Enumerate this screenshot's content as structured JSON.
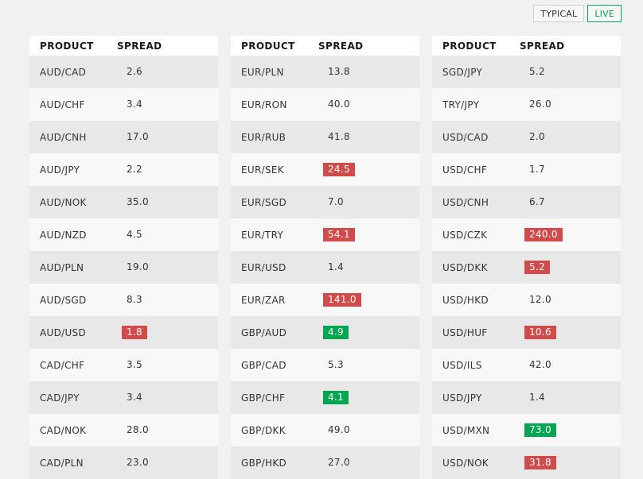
{
  "toggle": {
    "typical_label": "TYPICAL",
    "live_label": "LIVE",
    "active": "LIVE"
  },
  "columns_header": {
    "product": "PRODUCT",
    "spread": "SPREAD"
  },
  "colors": {
    "up": "#00a651",
    "down": "#d24b4b"
  },
  "tables": [
    {
      "rows": [
        {
          "product": "AUD/CAD",
          "spread": "2.6",
          "status": "none"
        },
        {
          "product": "AUD/CHF",
          "spread": "3.4",
          "status": "none"
        },
        {
          "product": "AUD/CNH",
          "spread": "17.0",
          "status": "none"
        },
        {
          "product": "AUD/JPY",
          "spread": "2.2",
          "status": "none"
        },
        {
          "product": "AUD/NOK",
          "spread": "35.0",
          "status": "none"
        },
        {
          "product": "AUD/NZD",
          "spread": "4.5",
          "status": "none"
        },
        {
          "product": "AUD/PLN",
          "spread": "19.0",
          "status": "none"
        },
        {
          "product": "AUD/SGD",
          "spread": "8.3",
          "status": "none"
        },
        {
          "product": "AUD/USD",
          "spread": "1.8",
          "status": "red"
        },
        {
          "product": "CAD/CHF",
          "spread": "3.5",
          "status": "none"
        },
        {
          "product": "CAD/JPY",
          "spread": "3.4",
          "status": "none"
        },
        {
          "product": "CAD/NOK",
          "spread": "28.0",
          "status": "none"
        },
        {
          "product": "CAD/PLN",
          "spread": "23.0",
          "status": "none"
        }
      ]
    },
    {
      "rows": [
        {
          "product": "EUR/PLN",
          "spread": "13.8",
          "status": "none"
        },
        {
          "product": "EUR/RON",
          "spread": "40.0",
          "status": "none"
        },
        {
          "product": "EUR/RUB",
          "spread": "41.8",
          "status": "none"
        },
        {
          "product": "EUR/SEK",
          "spread": "24.5",
          "status": "red"
        },
        {
          "product": "EUR/SGD",
          "spread": "7.0",
          "status": "none"
        },
        {
          "product": "EUR/TRY",
          "spread": "54.1",
          "status": "red"
        },
        {
          "product": "EUR/USD",
          "spread": "1.4",
          "status": "none"
        },
        {
          "product": "EUR/ZAR",
          "spread": "141.0",
          "status": "red"
        },
        {
          "product": "GBP/AUD",
          "spread": "4.9",
          "status": "green"
        },
        {
          "product": "GBP/CAD",
          "spread": "5.3",
          "status": "none"
        },
        {
          "product": "GBP/CHF",
          "spread": "4.1",
          "status": "green"
        },
        {
          "product": "GBP/DKK",
          "spread": "49.0",
          "status": "none"
        },
        {
          "product": "GBP/HKD",
          "spread": "27.0",
          "status": "none"
        }
      ]
    },
    {
      "rows": [
        {
          "product": "SGD/JPY",
          "spread": "5.2",
          "status": "none"
        },
        {
          "product": "TRY/JPY",
          "spread": "26.0",
          "status": "none"
        },
        {
          "product": "USD/CAD",
          "spread": "2.0",
          "status": "none"
        },
        {
          "product": "USD/CHF",
          "spread": "1.7",
          "status": "none"
        },
        {
          "product": "USD/CNH",
          "spread": "6.7",
          "status": "none"
        },
        {
          "product": "USD/CZK",
          "spread": "240.0",
          "status": "red"
        },
        {
          "product": "USD/DKK",
          "spread": "5.2",
          "status": "red"
        },
        {
          "product": "USD/HKD",
          "spread": "12.0",
          "status": "none"
        },
        {
          "product": "USD/HUF",
          "spread": "10.6",
          "status": "red"
        },
        {
          "product": "USD/ILS",
          "spread": "42.0",
          "status": "none"
        },
        {
          "product": "USD/JPY",
          "spread": "1.4",
          "status": "none"
        },
        {
          "product": "USD/MXN",
          "spread": "73.0",
          "status": "green"
        },
        {
          "product": "USD/NOK",
          "spread": "31.8",
          "status": "red"
        }
      ]
    }
  ]
}
